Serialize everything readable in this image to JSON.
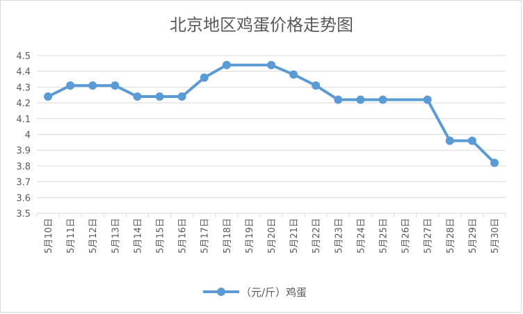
{
  "chart_data": {
    "type": "line",
    "title": "北京地区鸡蛋价格走势图",
    "categories": [
      "5月10日",
      "5月11日",
      "5月12日",
      "5月13日",
      "5月14日",
      "5月15日",
      "5月16日",
      "5月17日",
      "5月18日",
      "5月19日",
      "5月20日",
      "5月21日",
      "5月22日",
      "5月23日",
      "5月24日",
      "5月25日",
      "5月26日",
      "5月27日",
      "5月28日",
      "5月29日",
      "5月30日"
    ],
    "series": [
      {
        "name": "（元/斤）鸡蛋",
        "color": "#5b9bd5",
        "values": [
          4.24,
          4.31,
          4.31,
          4.31,
          4.24,
          4.24,
          4.24,
          4.36,
          4.44,
          4.44,
          4.44,
          4.38,
          4.31,
          4.22,
          4.22,
          4.22,
          4.22,
          4.22,
          3.96,
          3.96,
          3.82
        ],
        "point_indices": [
          0,
          1,
          2,
          3,
          4,
          5,
          6,
          7,
          8,
          10,
          11,
          12,
          13,
          14,
          15,
          17,
          18,
          19,
          20
        ]
      }
    ],
    "yticks": [
      "3.5",
      "3.6",
      "3.7",
      "3.8",
      "3.9",
      "4",
      "4.1",
      "4.2",
      "4.3",
      "4.4",
      "4.5"
    ],
    "ylim": [
      3.5,
      4.5
    ],
    "xlabel": "",
    "ylabel": "",
    "grid": true,
    "legend": "bottom"
  }
}
